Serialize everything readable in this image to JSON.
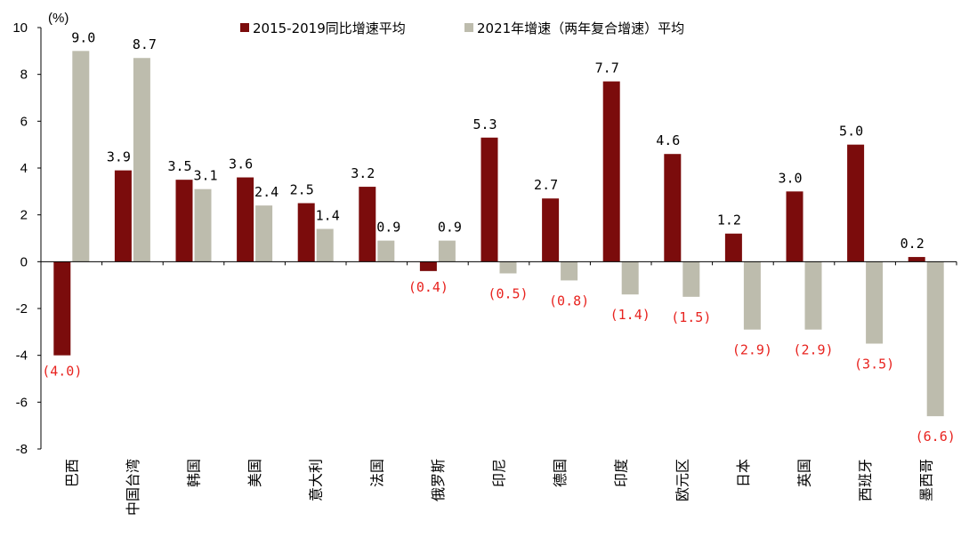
{
  "chart_data": {
    "type": "bar",
    "y_unit": "(%)",
    "ylim": [
      -8,
      10
    ],
    "y_ticks": [
      "10",
      "8",
      "6",
      "4",
      "2",
      "0",
      "-2",
      "-4",
      "-6",
      "-8"
    ],
    "grid": false,
    "legend_position": "top",
    "categories": [
      "巴西",
      "中国台湾",
      "韩国",
      "美国",
      "意大利",
      "法国",
      "俄罗斯",
      "印尼",
      "德国",
      "印度",
      "欧元区",
      "日本",
      "英国",
      "西班牙",
      "墨西哥"
    ],
    "series": [
      {
        "name": "2015-2019同比增速平均",
        "color": "#7b0c0c",
        "values": [
          -4.0,
          3.9,
          3.5,
          3.6,
          2.5,
          3.2,
          -0.4,
          5.3,
          2.7,
          7.7,
          4.6,
          1.2,
          3.0,
          5.0,
          0.2
        ],
        "labels": [
          "(4.0)",
          "3.9",
          "3.5",
          "3.6",
          "2.5",
          "3.2",
          "(0.4)",
          "5.3",
          "2.7",
          "7.7",
          "4.6",
          "1.2",
          "3.0",
          "5.0",
          "0.2"
        ]
      },
      {
        "name": "2021年增速（两年复合增速）平均",
        "color": "#bdbcad",
        "values": [
          9.0,
          8.7,
          3.1,
          2.4,
          1.4,
          0.9,
          0.9,
          -0.5,
          -0.8,
          -1.4,
          -1.5,
          -2.9,
          -2.9,
          -3.5,
          -6.6
        ],
        "labels": [
          "9.0",
          "8.7",
          "3.1",
          "2.4",
          "1.4",
          "0.9",
          "0.9",
          "(0.5)",
          "(0.8)",
          "(1.4)",
          "(1.5)",
          "(2.9)",
          "(2.9)",
          "(3.5)",
          "(6.6)"
        ]
      }
    ],
    "colors": {
      "negative_label": "#e8231f",
      "positive_label": "#000000",
      "axis": "#000000"
    }
  }
}
